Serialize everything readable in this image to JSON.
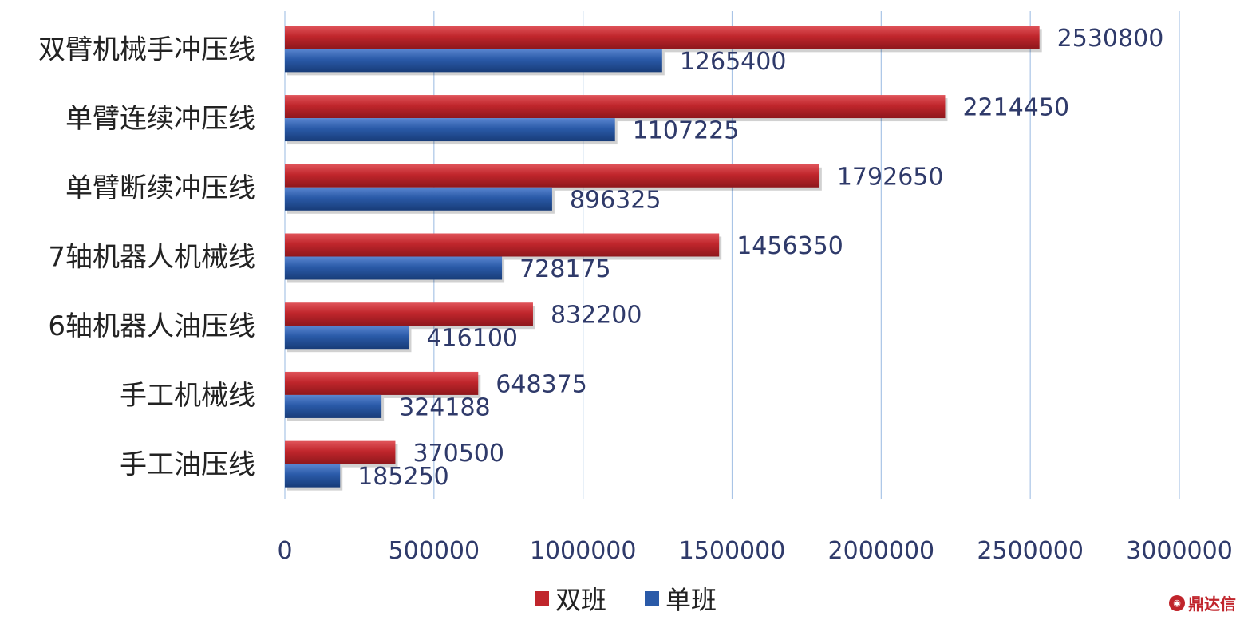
{
  "chart_data": {
    "type": "bar",
    "orientation": "horizontal",
    "categories": [
      "双臂机械手冲压线",
      "单臂连续冲压线",
      "单臂断续冲压线",
      "7轴机器人机械线",
      "6轴机器人油压线",
      "手工机械线",
      "手工油压线"
    ],
    "series": [
      {
        "name": "双班",
        "color": "#c0262c",
        "values": [
          2530800,
          2214450,
          1792650,
          1456350,
          832200,
          648375,
          370500
        ]
      },
      {
        "name": "单班",
        "color": "#2a5aa8",
        "values": [
          1265400,
          1107225,
          896325,
          728175,
          416100,
          324188,
          185250
        ]
      }
    ],
    "xlim": [
      0,
      3000000
    ],
    "xticks": [
      "0",
      "500000",
      "1000000",
      "1500000",
      "2000000",
      "2500000",
      "3000000"
    ],
    "title": "",
    "xlabel": "",
    "ylabel": "",
    "grid": "vertical",
    "legend": "bottom"
  },
  "watermark": {
    "text": "鼎达信",
    "icon": "logo-circle-icon"
  }
}
